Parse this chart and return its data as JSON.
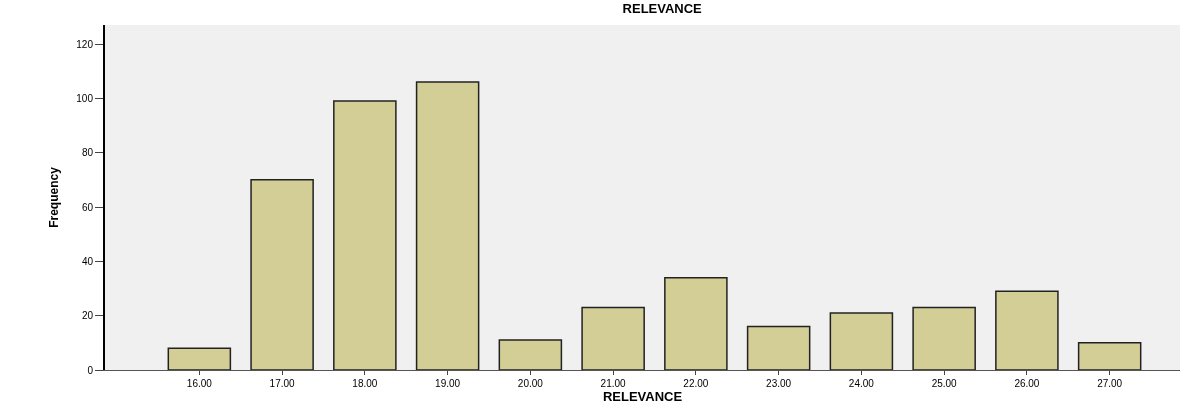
{
  "chart_data": {
    "type": "bar",
    "title": "RELEVANCE",
    "xlabel": "RELEVANCE",
    "ylabel": "Frequency",
    "categories": [
      "16.00",
      "17.00",
      "18.00",
      "19.00",
      "20.00",
      "21.00",
      "22.00",
      "23.00",
      "24.00",
      "25.00",
      "26.00",
      "27.00"
    ],
    "values": [
      8,
      70,
      99,
      106,
      11,
      23,
      34,
      16,
      21,
      23,
      29,
      10
    ],
    "color": "#d3cd96",
    "ylim": [
      0,
      127
    ],
    "yticks": [
      0,
      20,
      40,
      60,
      80,
      100,
      120
    ],
    "grid": false,
    "legend": false
  }
}
